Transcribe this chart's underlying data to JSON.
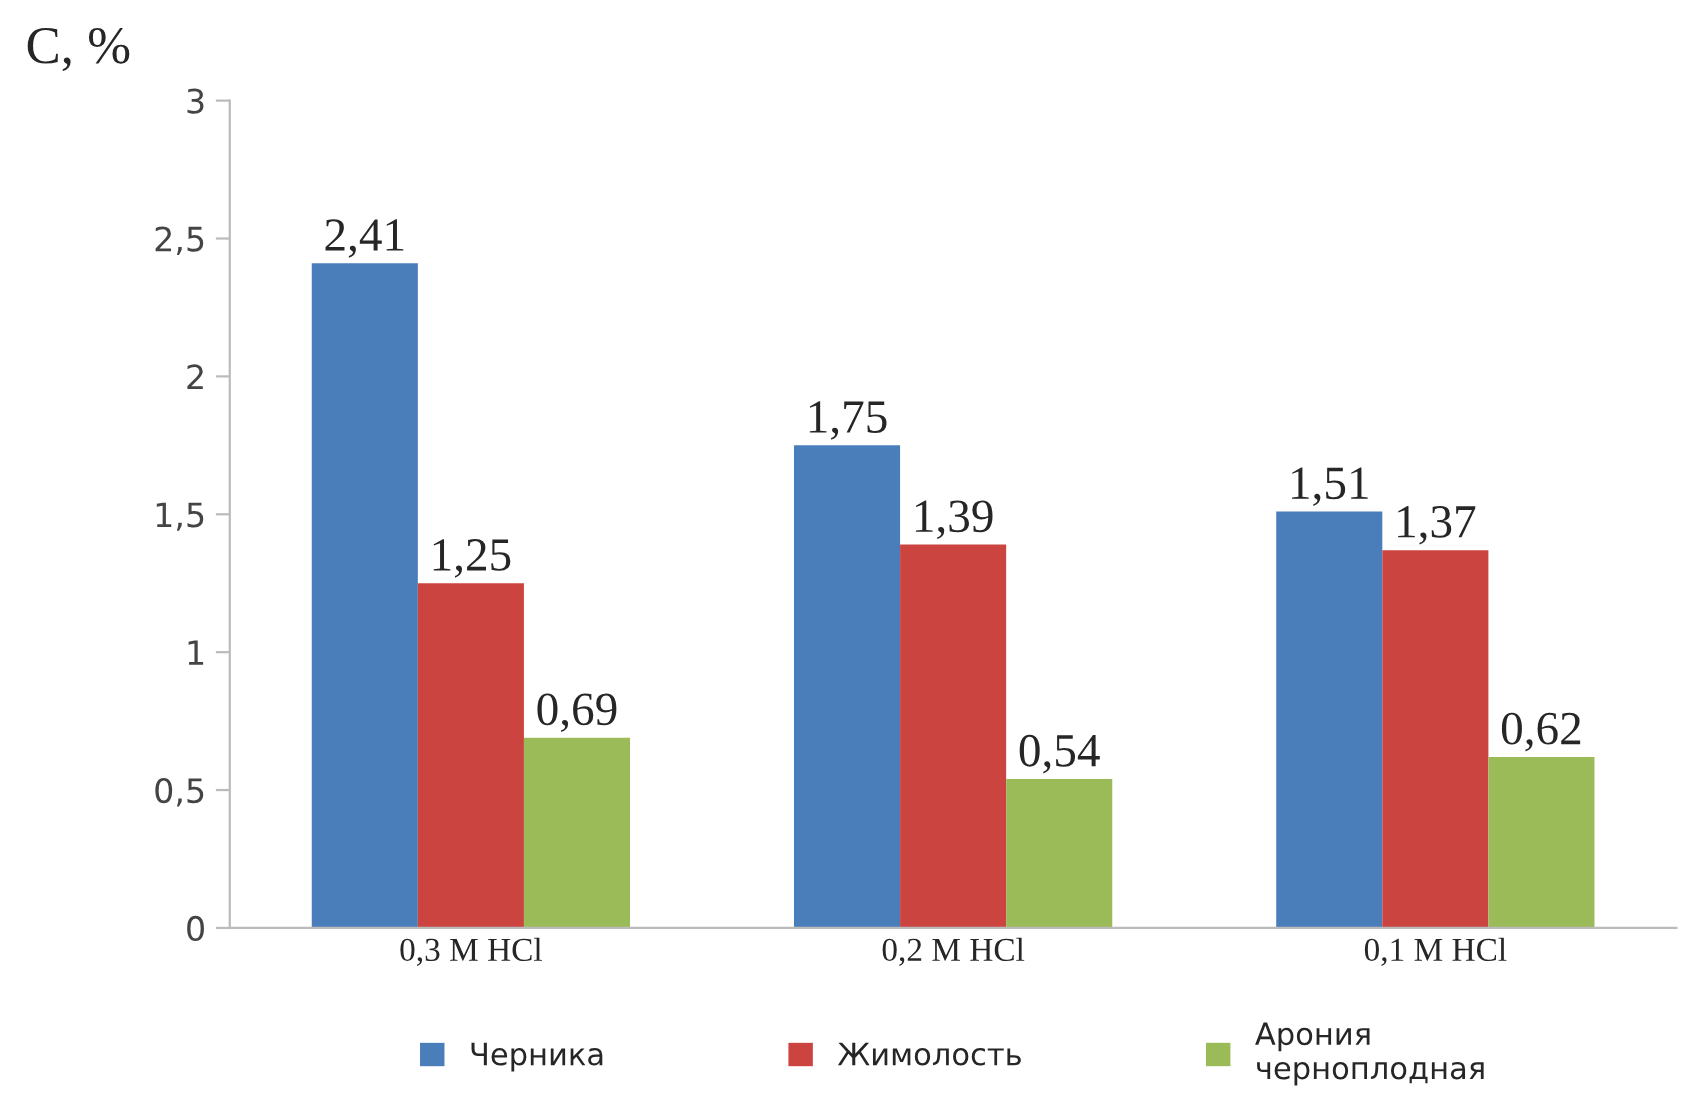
{
  "chart_data": {
    "type": "bar",
    "ylabel": "C, %",
    "categories": [
      "0,3 M HCl",
      "0,2 M HCl",
      "0,1 M HCl"
    ],
    "series": [
      {
        "name": "Черника",
        "color": "#4a7ebb",
        "values": [
          2.41,
          1.75,
          1.51
        ],
        "value_labels": [
          "2,41",
          "1,75",
          "1,51"
        ]
      },
      {
        "name": "Жимолость",
        "color": "#cc4440",
        "values": [
          1.25,
          1.39,
          1.37
        ],
        "value_labels": [
          "1,25",
          "1,39",
          "1,37"
        ]
      },
      {
        "name": "Арония\nчерноплодная",
        "color": "#9bbb59",
        "values": [
          0.69,
          0.54,
          0.62
        ],
        "value_labels": [
          "0,69",
          "0,54",
          "0,62"
        ]
      }
    ],
    "ylim": [
      0,
      3
    ],
    "yticks": [
      0,
      {
        "value": 0.5,
        "label": "0,5"
      },
      1,
      {
        "value": 1.5,
        "label": "1,5"
      },
      2,
      {
        "value": 2.5,
        "label": "2,5"
      },
      3
    ],
    "grid": false,
    "legend": "bottom"
  }
}
